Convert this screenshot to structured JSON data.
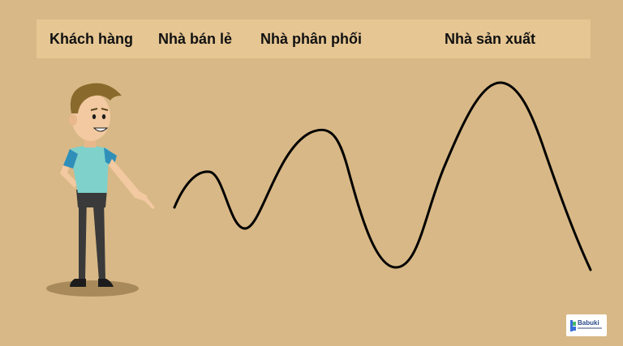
{
  "header": {
    "labels": {
      "customer": "Khách hàng",
      "retailer": "Nhà bán lẻ",
      "distributor": "Nhà phân phối",
      "manufacturer": "Nhà sản xuất"
    }
  },
  "logo": {
    "text": "Babuki"
  },
  "colors": {
    "background": "#d8b886",
    "header_bar": "#e6c693",
    "wave": "#000000",
    "shirt": "#7fd1cc",
    "sleeves": "#2f8fb8",
    "pants": "#3a3a3a",
    "hair": "#8a6a2c",
    "skin": "#f2c9a0",
    "shadow": "#a88a5a"
  },
  "icons": [
    "person-illustration",
    "wave-line",
    "babuki-logo-icon"
  ]
}
